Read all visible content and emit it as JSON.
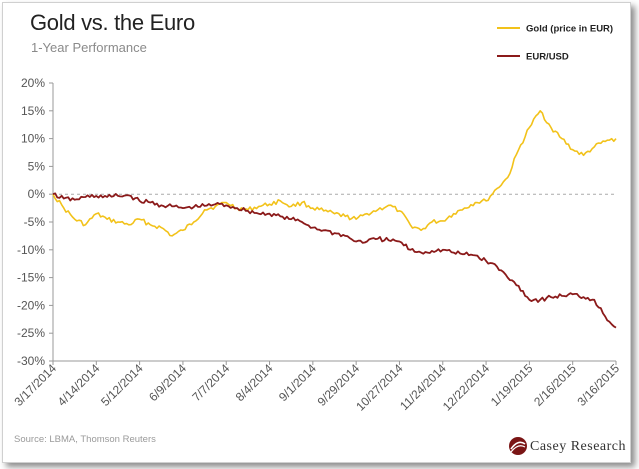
{
  "header": {
    "title": "Gold vs. the Euro",
    "subtitle": "1-Year Performance"
  },
  "footer": {
    "source": "Source: LBMA, Thomson Reuters",
    "logo_text": "Casey Research",
    "logo_icon": "casey-research-logo-icon"
  },
  "colors": {
    "gold": "#f2c21a",
    "eurusd": "#8b1a1a",
    "zero_line": "#aaaaaa",
    "axis": "#999999"
  },
  "chart_data": {
    "type": "line",
    "title": "Gold vs. the Euro",
    "subtitle": "1-Year Performance",
    "xlabel": "",
    "ylabel": "",
    "ylim": [
      -30,
      20
    ],
    "yticks": [
      20,
      15,
      10,
      5,
      0,
      -5,
      -10,
      -15,
      -20,
      -25,
      -30
    ],
    "ytick_labels": [
      "20%",
      "15%",
      "10%",
      "5%",
      "0%",
      "-5%",
      "-10%",
      "-15%",
      "-20%",
      "-25%",
      "-30%"
    ],
    "xtick_labels": [
      "3/17/2014",
      "4/14/2014",
      "5/12/2014",
      "6/9/2014",
      "7/7/2014",
      "8/4/2014",
      "9/1/2014",
      "9/29/2014",
      "10/27/2014",
      "11/24/2014",
      "12/22/2014",
      "1/19/2015",
      "2/16/2015",
      "3/16/2015"
    ],
    "grid": false,
    "legend_position": "top-right",
    "series": [
      {
        "name": "Gold (price in EUR)",
        "color": "#f2c21a",
        "points": [
          [
            "3/17/2014",
            0
          ],
          [
            "3/24/2014",
            -2.5
          ],
          [
            "3/31/2014",
            -4.5
          ],
          [
            "4/7/2014",
            -5.5
          ],
          [
            "4/14/2014",
            -3.5
          ],
          [
            "4/21/2014",
            -4.5
          ],
          [
            "4/28/2014",
            -5
          ],
          [
            "5/5/2014",
            -5.5
          ],
          [
            "5/12/2014",
            -4.5
          ],
          [
            "5/19/2014",
            -5.5
          ],
          [
            "5/26/2014",
            -6
          ],
          [
            "6/2/2014",
            -7.5
          ],
          [
            "6/9/2014",
            -6.5
          ],
          [
            "6/16/2014",
            -5
          ],
          [
            "6/23/2014",
            -2.8
          ],
          [
            "6/30/2014",
            -2.2
          ],
          [
            "7/7/2014",
            -1.5
          ],
          [
            "7/14/2014",
            -2.5
          ],
          [
            "7/21/2014",
            -2.8
          ],
          [
            "7/28/2014",
            -2.2
          ],
          [
            "8/4/2014",
            -1.8
          ],
          [
            "8/11/2014",
            -1.2
          ],
          [
            "8/18/2014",
            -2.2
          ],
          [
            "8/25/2014",
            -1.5
          ],
          [
            "9/1/2014",
            -2.5
          ],
          [
            "9/8/2014",
            -3
          ],
          [
            "9/15/2014",
            -3.5
          ],
          [
            "9/22/2014",
            -4
          ],
          [
            "9/29/2014",
            -4.5
          ],
          [
            "10/6/2014",
            -3.5
          ],
          [
            "10/13/2014",
            -2.8
          ],
          [
            "10/20/2014",
            -2
          ],
          [
            "10/27/2014",
            -3
          ],
          [
            "11/3/2014",
            -5.5
          ],
          [
            "11/10/2014",
            -6.5
          ],
          [
            "11/17/2014",
            -5
          ],
          [
            "11/24/2014",
            -4.8
          ],
          [
            "12/1/2014",
            -3.5
          ],
          [
            "12/8/2014",
            -2.5
          ],
          [
            "12/15/2014",
            -1.5
          ],
          [
            "12/22/2014",
            -1.2
          ],
          [
            "12/29/2014",
            1
          ],
          [
            "1/5/2015",
            3
          ],
          [
            "1/12/2015",
            8
          ],
          [
            "1/19/2015",
            12
          ],
          [
            "1/26/2015",
            15
          ],
          [
            "2/2/2015",
            12
          ],
          [
            "2/9/2015",
            10
          ],
          [
            "2/16/2015",
            8
          ],
          [
            "2/23/2015",
            7
          ],
          [
            "3/2/2015",
            8.5
          ],
          [
            "3/9/2015",
            9.5
          ],
          [
            "3/16/2015",
            10
          ]
        ]
      },
      {
        "name": "EUR/USD",
        "color": "#8b1a1a",
        "points": [
          [
            "3/17/2014",
            0
          ],
          [
            "3/24/2014",
            -0.8
          ],
          [
            "3/31/2014",
            -1
          ],
          [
            "4/7/2014",
            -0.5
          ],
          [
            "4/14/2014",
            -0.3
          ],
          [
            "4/21/2014",
            -0.5
          ],
          [
            "4/28/2014",
            -0.3
          ],
          [
            "5/5/2014",
            -0.2
          ],
          [
            "5/12/2014",
            -1.2
          ],
          [
            "5/19/2014",
            -1.5
          ],
          [
            "5/26/2014",
            -2
          ],
          [
            "6/2/2014",
            -2.2
          ],
          [
            "6/9/2014",
            -2.5
          ],
          [
            "6/16/2014",
            -2.3
          ],
          [
            "6/23/2014",
            -2.1
          ],
          [
            "6/30/2014",
            -1.8
          ],
          [
            "7/7/2014",
            -2
          ],
          [
            "7/14/2014",
            -2.5
          ],
          [
            "7/21/2014",
            -3
          ],
          [
            "7/28/2014",
            -3.5
          ],
          [
            "8/4/2014",
            -3.5
          ],
          [
            "8/11/2014",
            -4
          ],
          [
            "8/18/2014",
            -4.5
          ],
          [
            "8/25/2014",
            -5
          ],
          [
            "9/1/2014",
            -6
          ],
          [
            "9/8/2014",
            -6.5
          ],
          [
            "9/15/2014",
            -7
          ],
          [
            "9/22/2014",
            -7.5
          ],
          [
            "9/29/2014",
            -8.5
          ],
          [
            "10/6/2014",
            -8.5
          ],
          [
            "10/13/2014",
            -8
          ],
          [
            "10/20/2014",
            -8.3
          ],
          [
            "10/27/2014",
            -8.5
          ],
          [
            "11/3/2014",
            -10
          ],
          [
            "11/10/2014",
            -10.5
          ],
          [
            "11/17/2014",
            -10.2
          ],
          [
            "11/24/2014",
            -10
          ],
          [
            "12/1/2014",
            -10.5
          ],
          [
            "12/8/2014",
            -10.8
          ],
          [
            "12/15/2014",
            -11
          ],
          [
            "12/22/2014",
            -12
          ],
          [
            "12/29/2014",
            -13
          ],
          [
            "1/5/2015",
            -15
          ],
          [
            "1/12/2015",
            -16.5
          ],
          [
            "1/19/2015",
            -19
          ],
          [
            "1/26/2015",
            -19
          ],
          [
            "2/2/2015",
            -18.5
          ],
          [
            "2/9/2015",
            -18.3
          ],
          [
            "2/16/2015",
            -18
          ],
          [
            "2/23/2015",
            -18.5
          ],
          [
            "3/2/2015",
            -19
          ],
          [
            "3/9/2015",
            -22
          ],
          [
            "3/16/2015",
            -24
          ]
        ]
      }
    ]
  }
}
